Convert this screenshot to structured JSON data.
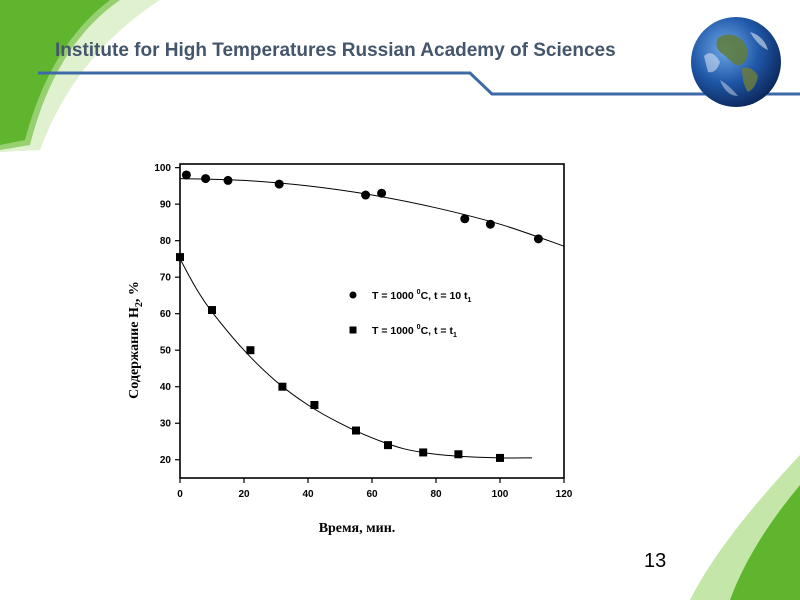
{
  "header": {
    "title": "Institute for High Temperatures Russian Academy of Sciences"
  },
  "slide": {
    "number": "13"
  },
  "colors": {
    "accent_green": "#5fb52e",
    "light_green": "#c4e6a8",
    "header_rule": "#3d6aa6",
    "header_text": "#44566b"
  },
  "icons": {
    "globe": "earth-globe-icon"
  },
  "chart_data": {
    "type": "scatter",
    "xlabel": "Время, мин.",
    "ylabel_main": "Содержание H",
    "ylabel_sub": "2",
    "ylabel_tail": ", %",
    "xlim": [
      0,
      120
    ],
    "ylim": [
      15,
      101
    ],
    "xticks": [
      0,
      20,
      40,
      60,
      80,
      100,
      120
    ],
    "yticks": [
      20,
      30,
      40,
      50,
      60,
      70,
      80,
      90,
      100
    ],
    "grid": false,
    "legend_position": "center-right",
    "series": [
      {
        "name": "T = 1000 °C,   t = 10 t₁",
        "name_parts": {
          "a": "T = 1000 ",
          "sup": "0",
          "b": "C,   t = 10 t",
          "sub": "1"
        },
        "marker": "circle",
        "x": [
          2,
          8,
          15,
          31,
          58,
          63,
          89,
          97,
          112
        ],
        "y": [
          98,
          97,
          96.5,
          95.5,
          92.5,
          93,
          86,
          84.5,
          80.5
        ],
        "fit_x": [
          0,
          20,
          40,
          60,
          80,
          100,
          120
        ],
        "fit_y": [
          97,
          96.5,
          95,
          92.5,
          89,
          84.5,
          78.5
        ]
      },
      {
        "name": "T = 1000 °C,   t = t₁",
        "name_parts": {
          "a": "T = 1000 ",
          "sup": "0",
          "b": "C,   t = t",
          "sub": "1"
        },
        "marker": "square",
        "x": [
          0,
          10,
          22,
          32,
          42,
          55,
          65,
          76,
          87,
          100
        ],
        "y": [
          75.5,
          61,
          50,
          40,
          35,
          28,
          24,
          22,
          21.5,
          20.5
        ],
        "fit_x": [
          0,
          5,
          10,
          20,
          30,
          40,
          50,
          60,
          70,
          80,
          90,
          100,
          110
        ],
        "fit_y": [
          75,
          67,
          60.5,
          50,
          41.5,
          35,
          30,
          26,
          23,
          21.5,
          20.8,
          20.5,
          20.5
        ]
      }
    ]
  }
}
